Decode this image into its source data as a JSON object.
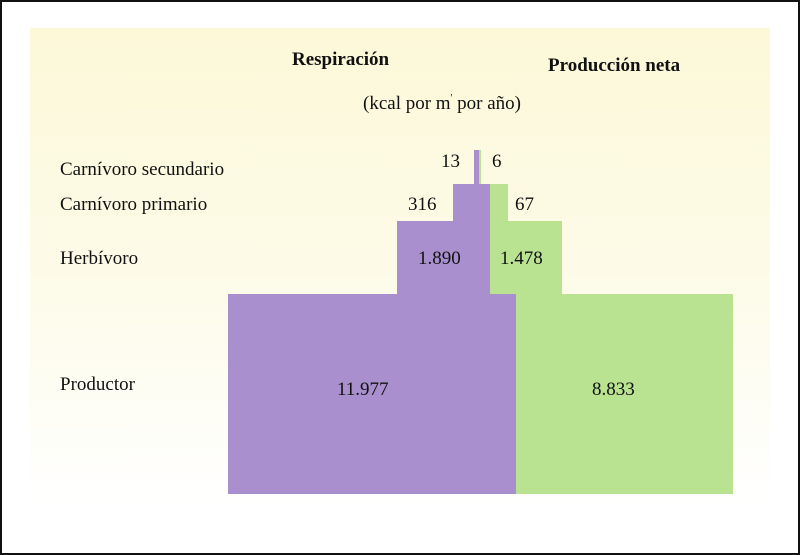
{
  "headers": {
    "respiration": "Respiración",
    "net_production": "Producción neta",
    "units_pre": "(kcal por m",
    "units_sup": "'",
    "units_post": " por año)"
  },
  "levels": [
    {
      "label": "Carnívoro secundario",
      "respiration": "13",
      "net_production": "6"
    },
    {
      "label": "Carnívoro primario",
      "respiration": "316",
      "net_production": "67"
    },
    {
      "label": "Herbívoro",
      "respiration": "1.890",
      "net_production": "1.478"
    },
    {
      "label": "Productor",
      "respiration": "11.977",
      "net_production": "8.833"
    }
  ],
  "colors": {
    "respiration": "#a98fcd",
    "net_production": "#b9e291",
    "background": "#fcf8d8"
  }
}
